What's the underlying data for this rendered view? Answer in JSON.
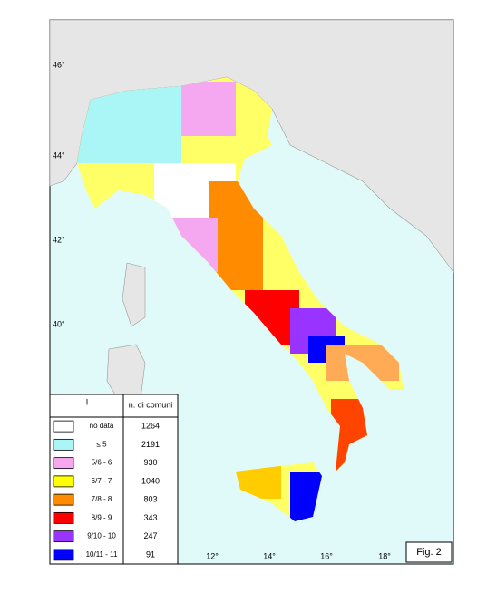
{
  "map": {
    "lat_labels": [
      "46°",
      "44°",
      "42°",
      "40°"
    ],
    "lon_labels": [
      "12°",
      "14°",
      "16°",
      "18°"
    ],
    "figure_label": "Fig. 2",
    "legend": {
      "header": {
        "class": "I",
        "count": "n. di comuni"
      },
      "rows": [
        {
          "label": "no data",
          "count": 1264,
          "color": "#ffffff"
        },
        {
          "label": "≤ 5",
          "count": 2191,
          "color": "#aaf5f5"
        },
        {
          "label": "5/6 - 6",
          "count": 930,
          "color": "#f5a8f0"
        },
        {
          "label": "6/7 - 7",
          "count": 1040,
          "color": "#ffff00"
        },
        {
          "label": "7/8 - 8",
          "count": 803,
          "color": "#ff8c00"
        },
        {
          "label": "8/9 - 9",
          "count": 343,
          "color": "#ff0000"
        },
        {
          "label": "9/10 - 10",
          "count": 247,
          "color": "#9933ff"
        },
        {
          "label": "10/11 - 11",
          "count": 91,
          "color": "#0000ff"
        }
      ]
    }
  }
}
